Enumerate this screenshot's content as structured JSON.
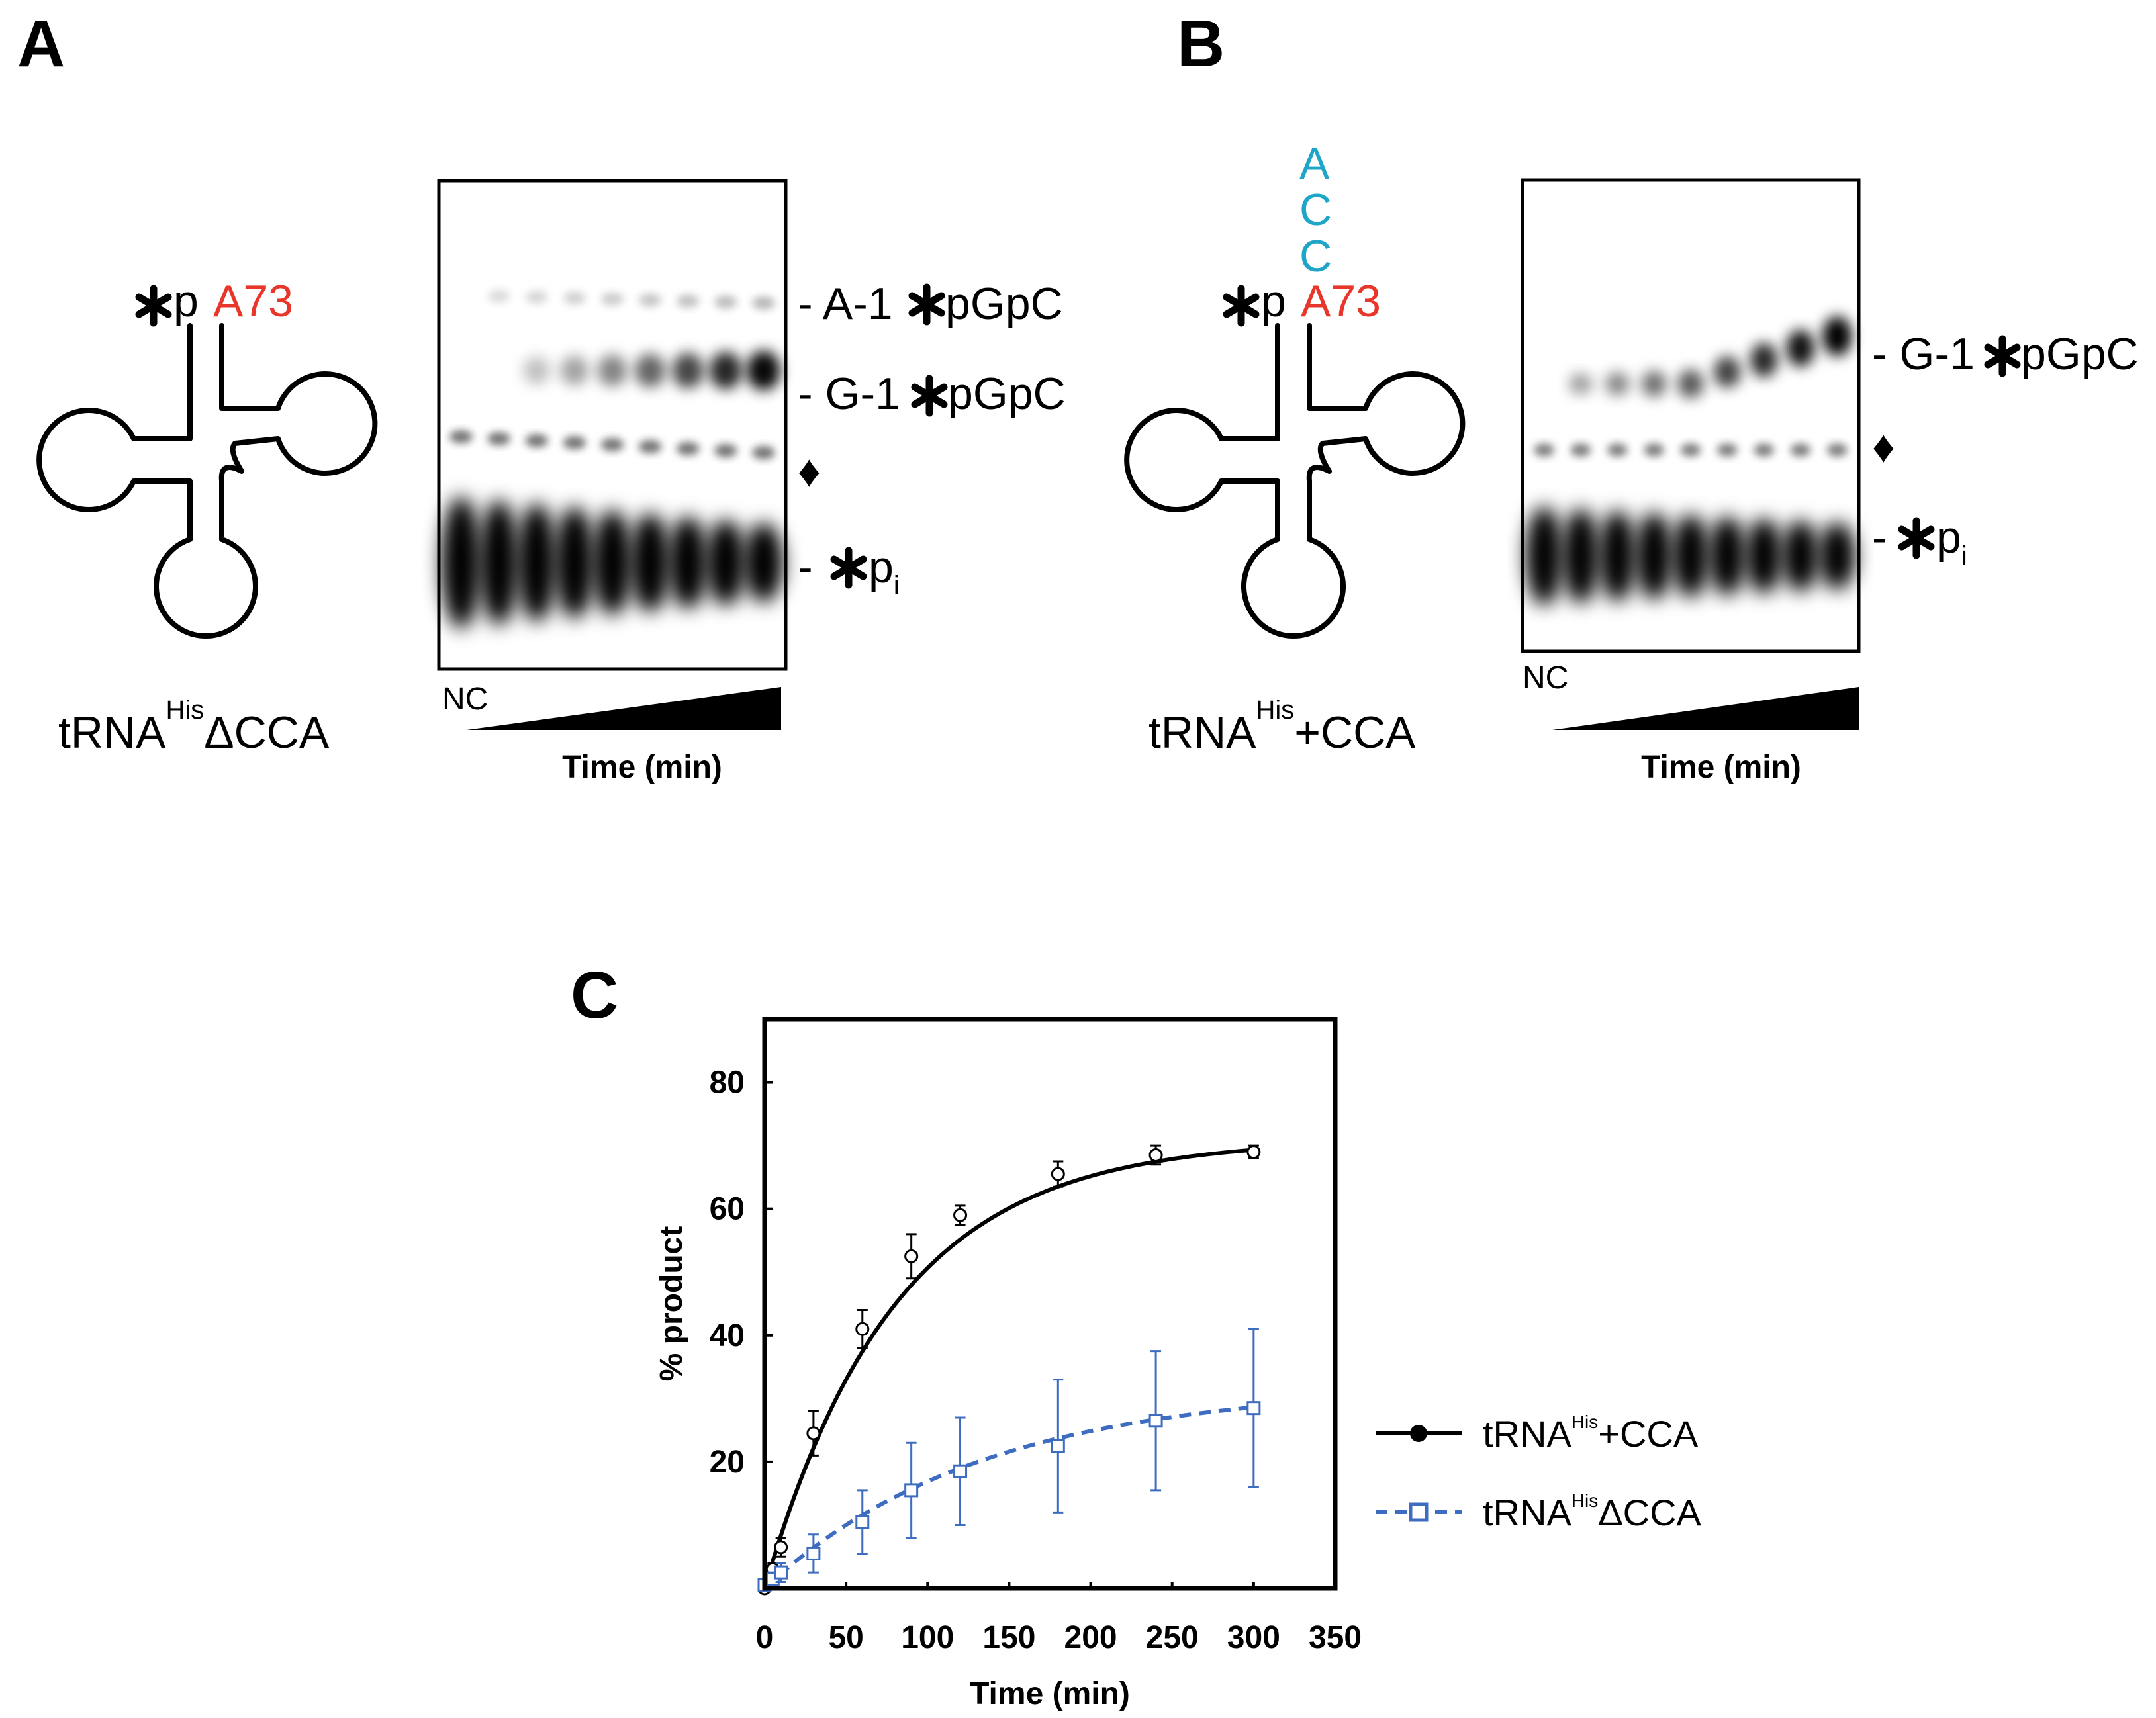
{
  "panels": {
    "A": {
      "letter": "A",
      "trna_label": {
        "prefix": "tRNA",
        "sup": "His",
        "suffix": "ΔCCA"
      },
      "phospho_label": "p",
      "nucleotide_label": "A73",
      "gel_lane_start": "NC",
      "gel_xlabel": "Time (min)",
      "band_labels": [
        {
          "dash": "- ",
          "pre": "A-1",
          "post": "pGpC"
        },
        {
          "dash": "- ",
          "pre": "G-1",
          "post": "pGpC"
        },
        {
          "dash": "",
          "pre": "♦",
          "post": ""
        },
        {
          "dash": "- ",
          "pre": "",
          "post": "p",
          "sub": "i"
        }
      ]
    },
    "B": {
      "letter": "B",
      "trna_label": {
        "prefix": "tRNA",
        "sup": "His",
        "suffix": "+CCA"
      },
      "phospho_label": "p",
      "nucleotide_label": "A73",
      "cca_tail": [
        "A",
        "C",
        "C"
      ],
      "gel_lane_start": "NC",
      "gel_xlabel": "Time (min)",
      "band_labels": [
        {
          "dash": "- ",
          "pre": "G-1",
          "post": "pGpC"
        },
        {
          "dash": "",
          "pre": "♦",
          "post": ""
        },
        {
          "dash": "- ",
          "pre": "",
          "post": "p",
          "sub": "i"
        }
      ]
    },
    "C": {
      "letter": "C"
    }
  },
  "colors": {
    "nucleotide_red": "#e8372a",
    "cca_cyan": "#1ea5c8",
    "series_blue": "#3d6cc0",
    "series_black": "#000000"
  },
  "chart_data": {
    "type": "line",
    "xlabel": "Time (min)",
    "ylabel": "% product",
    "xlim": [
      0,
      350
    ],
    "ylim": [
      0,
      90
    ],
    "xticks": [
      0,
      50,
      100,
      150,
      200,
      250,
      300,
      350
    ],
    "yticks": [
      20,
      40,
      60,
      80
    ],
    "grid": false,
    "legend_position": "right",
    "series": [
      {
        "name": "tRNA^His+CCA",
        "legend": {
          "prefix": "tRNA",
          "sup": "His",
          "suffix": "+CCA"
        },
        "style": "solid",
        "marker": "circle",
        "x": [
          0,
          5,
          10,
          30,
          60,
          90,
          120,
          180,
          240,
          300
        ],
        "y": [
          0,
          3,
          6.5,
          24.5,
          41,
          52.5,
          59,
          65.5,
          68.5,
          69
        ],
        "err": [
          0.5,
          1,
          1.5,
          3.5,
          3,
          3.5,
          1.5,
          2,
          1.5,
          1
        ],
        "fit_plateau": 71,
        "fit_rate": 0.0125
      },
      {
        "name": "tRNA^HisΔCCA",
        "legend": {
          "prefix": "tRNA",
          "sup": "His",
          "suffix": "ΔCCA"
        },
        "style": "dashed",
        "marker": "square",
        "x": [
          0,
          5,
          10,
          30,
          60,
          90,
          120,
          180,
          240,
          300
        ],
        "y": [
          0.5,
          1.5,
          2.5,
          5.5,
          10.5,
          15.5,
          18.5,
          22.5,
          26.5,
          28.5
        ],
        "err": [
          0.5,
          1,
          1.5,
          3,
          5,
          7.5,
          8.5,
          10.5,
          11,
          12.5
        ],
        "fit_plateau": 32,
        "fit_rate": 0.0075
      }
    ]
  }
}
